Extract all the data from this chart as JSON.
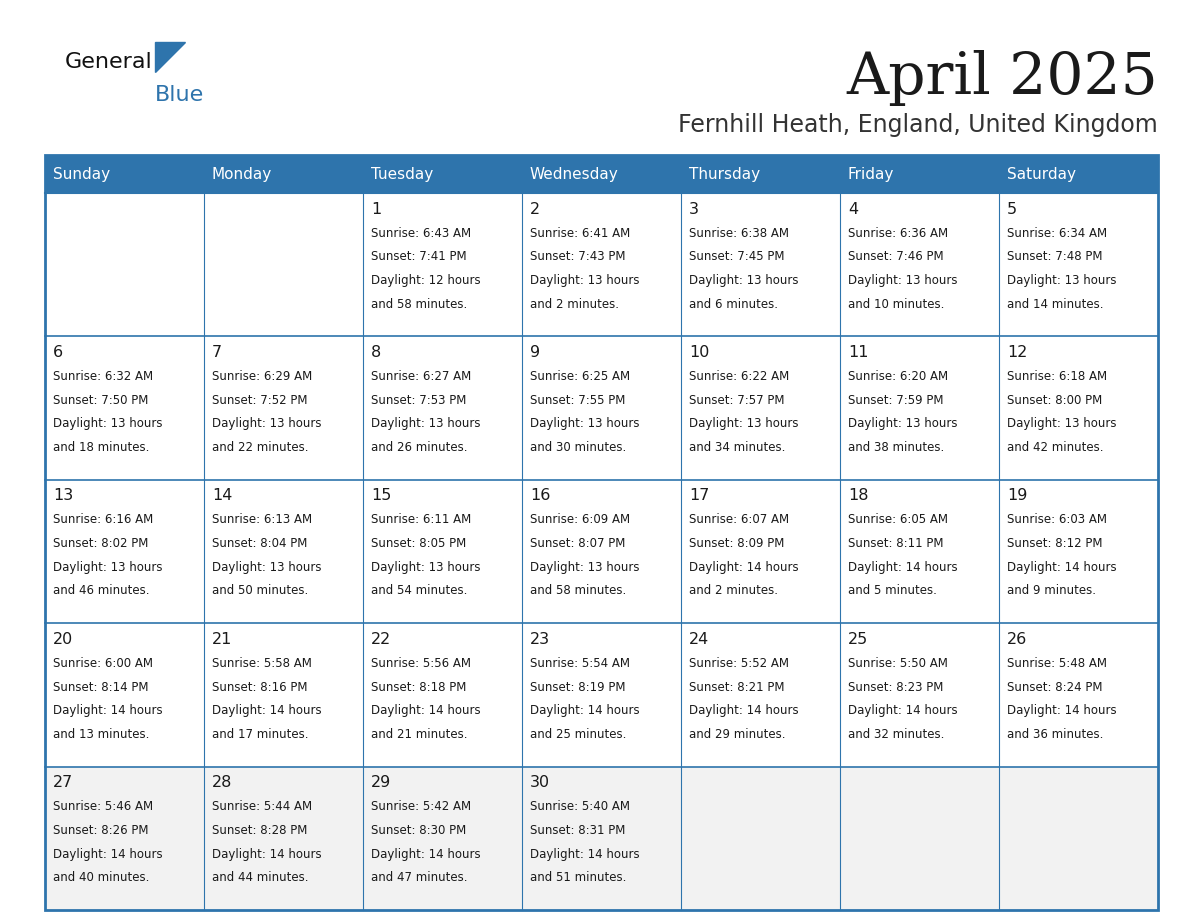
{
  "title": "April 2025",
  "subtitle": "Fernhill Heath, England, United Kingdom",
  "header_bg": "#2E74AC",
  "header_text": "#FFFFFF",
  "border_color": "#2E74AC",
  "cell_bg_white": "#FFFFFF",
  "cell_bg_gray": "#F2F2F2",
  "text_color": "#1a1a1a",
  "day_headers": [
    "Sunday",
    "Monday",
    "Tuesday",
    "Wednesday",
    "Thursday",
    "Friday",
    "Saturday"
  ],
  "weeks": [
    [
      {
        "day": "",
        "info": ""
      },
      {
        "day": "",
        "info": ""
      },
      {
        "day": "1",
        "info": "Sunrise: 6:43 AM\nSunset: 7:41 PM\nDaylight: 12 hours\nand 58 minutes."
      },
      {
        "day": "2",
        "info": "Sunrise: 6:41 AM\nSunset: 7:43 PM\nDaylight: 13 hours\nand 2 minutes."
      },
      {
        "day": "3",
        "info": "Sunrise: 6:38 AM\nSunset: 7:45 PM\nDaylight: 13 hours\nand 6 minutes."
      },
      {
        "day": "4",
        "info": "Sunrise: 6:36 AM\nSunset: 7:46 PM\nDaylight: 13 hours\nand 10 minutes."
      },
      {
        "day": "5",
        "info": "Sunrise: 6:34 AM\nSunset: 7:48 PM\nDaylight: 13 hours\nand 14 minutes."
      }
    ],
    [
      {
        "day": "6",
        "info": "Sunrise: 6:32 AM\nSunset: 7:50 PM\nDaylight: 13 hours\nand 18 minutes."
      },
      {
        "day": "7",
        "info": "Sunrise: 6:29 AM\nSunset: 7:52 PM\nDaylight: 13 hours\nand 22 minutes."
      },
      {
        "day": "8",
        "info": "Sunrise: 6:27 AM\nSunset: 7:53 PM\nDaylight: 13 hours\nand 26 minutes."
      },
      {
        "day": "9",
        "info": "Sunrise: 6:25 AM\nSunset: 7:55 PM\nDaylight: 13 hours\nand 30 minutes."
      },
      {
        "day": "10",
        "info": "Sunrise: 6:22 AM\nSunset: 7:57 PM\nDaylight: 13 hours\nand 34 minutes."
      },
      {
        "day": "11",
        "info": "Sunrise: 6:20 AM\nSunset: 7:59 PM\nDaylight: 13 hours\nand 38 minutes."
      },
      {
        "day": "12",
        "info": "Sunrise: 6:18 AM\nSunset: 8:00 PM\nDaylight: 13 hours\nand 42 minutes."
      }
    ],
    [
      {
        "day": "13",
        "info": "Sunrise: 6:16 AM\nSunset: 8:02 PM\nDaylight: 13 hours\nand 46 minutes."
      },
      {
        "day": "14",
        "info": "Sunrise: 6:13 AM\nSunset: 8:04 PM\nDaylight: 13 hours\nand 50 minutes."
      },
      {
        "day": "15",
        "info": "Sunrise: 6:11 AM\nSunset: 8:05 PM\nDaylight: 13 hours\nand 54 minutes."
      },
      {
        "day": "16",
        "info": "Sunrise: 6:09 AM\nSunset: 8:07 PM\nDaylight: 13 hours\nand 58 minutes."
      },
      {
        "day": "17",
        "info": "Sunrise: 6:07 AM\nSunset: 8:09 PM\nDaylight: 14 hours\nand 2 minutes."
      },
      {
        "day": "18",
        "info": "Sunrise: 6:05 AM\nSunset: 8:11 PM\nDaylight: 14 hours\nand 5 minutes."
      },
      {
        "day": "19",
        "info": "Sunrise: 6:03 AM\nSunset: 8:12 PM\nDaylight: 14 hours\nand 9 minutes."
      }
    ],
    [
      {
        "day": "20",
        "info": "Sunrise: 6:00 AM\nSunset: 8:14 PM\nDaylight: 14 hours\nand 13 minutes."
      },
      {
        "day": "21",
        "info": "Sunrise: 5:58 AM\nSunset: 8:16 PM\nDaylight: 14 hours\nand 17 minutes."
      },
      {
        "day": "22",
        "info": "Sunrise: 5:56 AM\nSunset: 8:18 PM\nDaylight: 14 hours\nand 21 minutes."
      },
      {
        "day": "23",
        "info": "Sunrise: 5:54 AM\nSunset: 8:19 PM\nDaylight: 14 hours\nand 25 minutes."
      },
      {
        "day": "24",
        "info": "Sunrise: 5:52 AM\nSunset: 8:21 PM\nDaylight: 14 hours\nand 29 minutes."
      },
      {
        "day": "25",
        "info": "Sunrise: 5:50 AM\nSunset: 8:23 PM\nDaylight: 14 hours\nand 32 minutes."
      },
      {
        "day": "26",
        "info": "Sunrise: 5:48 AM\nSunset: 8:24 PM\nDaylight: 14 hours\nand 36 minutes."
      }
    ],
    [
      {
        "day": "27",
        "info": "Sunrise: 5:46 AM\nSunset: 8:26 PM\nDaylight: 14 hours\nand 40 minutes."
      },
      {
        "day": "28",
        "info": "Sunrise: 5:44 AM\nSunset: 8:28 PM\nDaylight: 14 hours\nand 44 minutes."
      },
      {
        "day": "29",
        "info": "Sunrise: 5:42 AM\nSunset: 8:30 PM\nDaylight: 14 hours\nand 47 minutes."
      },
      {
        "day": "30",
        "info": "Sunrise: 5:40 AM\nSunset: 8:31 PM\nDaylight: 14 hours\nand 51 minutes."
      },
      {
        "day": "",
        "info": ""
      },
      {
        "day": "",
        "info": ""
      },
      {
        "day": "",
        "info": ""
      }
    ]
  ]
}
